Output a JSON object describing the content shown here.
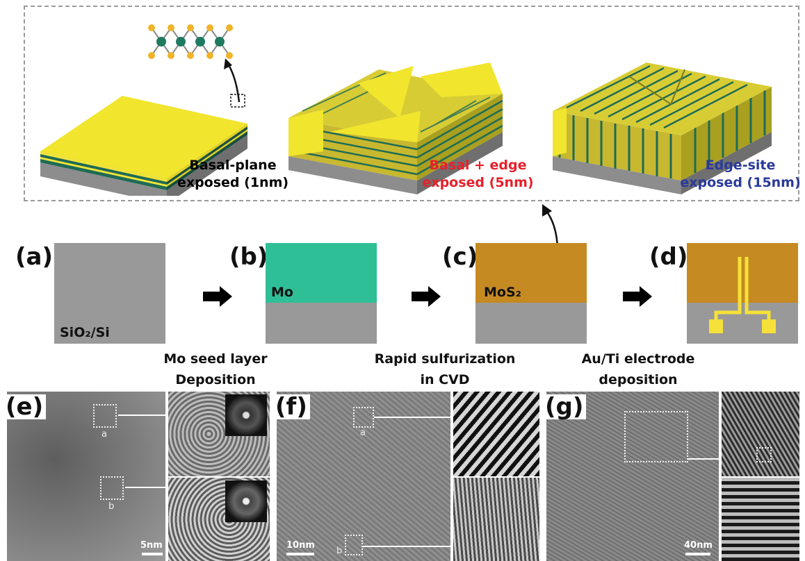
{
  "top_panel": {
    "labels": [
      {
        "line1": "Basal-plane",
        "line2": "exposed (1nm)",
        "color": "#111111"
      },
      {
        "line1": "Basal + edge",
        "line2": "exposed (5nm)",
        "color": "#e8202a"
      },
      {
        "line1": "Edge-site",
        "line2": "exposed (15nm)",
        "color": "#2a3a9a"
      }
    ]
  },
  "process": {
    "panels": [
      {
        "letter": "(a)",
        "layer": "SiO₂/Si"
      },
      {
        "letter": "(b)",
        "layer": "Mo"
      },
      {
        "letter": "(c)",
        "layer": "MoS₂"
      },
      {
        "letter": "(d)",
        "layer": ""
      }
    ],
    "steps": [
      {
        "line1": "Mo seed layer",
        "line2": "Deposition"
      },
      {
        "line1": "Rapid sulfurization",
        "line2": "in CVD"
      },
      {
        "line1": "Au/Ti electrode",
        "line2": "deposition"
      }
    ]
  },
  "tem": {
    "panels": [
      {
        "letter": "(e)",
        "scale": "5nm",
        "region_a": "a",
        "region_b": "b"
      },
      {
        "letter": "(f)",
        "scale": "10nm",
        "region_a": "a",
        "region_b": "b"
      },
      {
        "letter": "(g)",
        "scale": "40nm"
      }
    ]
  },
  "colors": {
    "substrate": "#999999",
    "mo": "#2fbf96",
    "mos2": "#c58a22",
    "electrode": "#f5e13a",
    "mos2_yellow": "#f2e33a",
    "mos2_green": "#1e6b55"
  }
}
